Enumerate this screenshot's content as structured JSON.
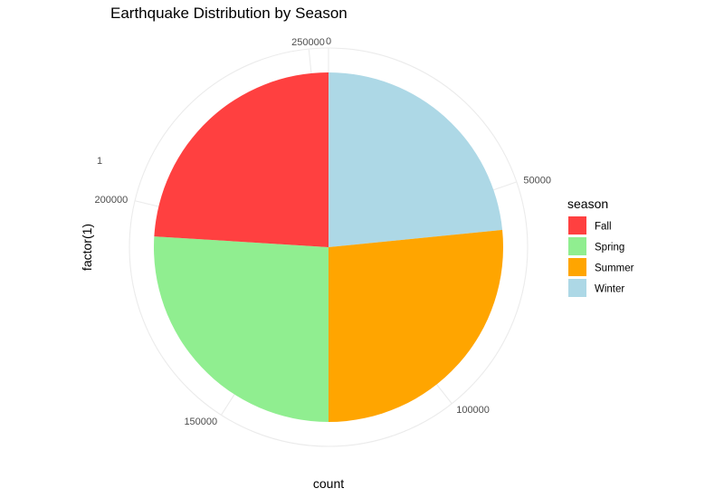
{
  "chart_data": {
    "type": "pie",
    "title": "Earthquake Distribution by Season",
    "xlabel": "count",
    "ylabel": "factor(1)",
    "y_tick_label": "1",
    "theta_range": [
      0,
      254000
    ],
    "theta_ticks": [
      {
        "value": 0,
        "label": "0"
      },
      {
        "value": 50000,
        "label": "50000"
      },
      {
        "value": 100000,
        "label": "100000"
      },
      {
        "value": 150000,
        "label": "150000"
      },
      {
        "value": 200000,
        "label": "200000"
      },
      {
        "value": 250000,
        "label": "250000"
      }
    ],
    "start_angle": "12 o'clock",
    "direction": "clockwise",
    "slice_order": [
      "Winter",
      "Summer",
      "Spring",
      "Fall"
    ],
    "slices": [
      {
        "label": "Fall",
        "value": 61000,
        "color": "#FF4040"
      },
      {
        "label": "Spring",
        "value": 66000,
        "color": "#90EE90"
      },
      {
        "label": "Summer",
        "value": 67500,
        "color": "#FFA500"
      },
      {
        "label": "Winter",
        "value": 59500,
        "color": "#ADD8E6"
      }
    ],
    "legend": {
      "title": "season",
      "position": "right"
    },
    "grid": true,
    "theme": "minimal"
  }
}
